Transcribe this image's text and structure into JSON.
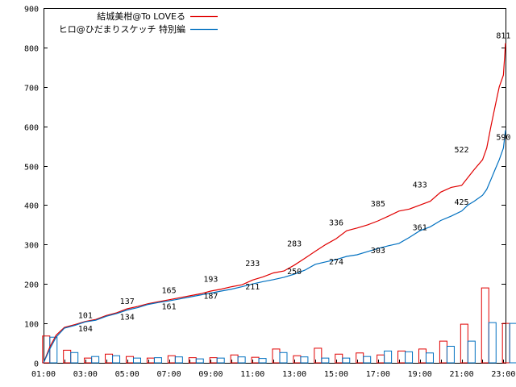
{
  "chart_data": {
    "type": "line",
    "x_ticks": [
      "01:00",
      "03:00",
      "05:00",
      "07:00",
      "09:00",
      "11:00",
      "13:00",
      "15:00",
      "17:00",
      "19:00",
      "21:00",
      "23:00"
    ],
    "ylim": [
      0,
      900
    ],
    "y_ticks": [
      0,
      100,
      200,
      300,
      400,
      500,
      600,
      700,
      800,
      900
    ],
    "series": [
      {
        "name": "結城美柑@To LOVEる",
        "color": "#e00000",
        "x": [
          1,
          1.3,
          1.6,
          2,
          2.5,
          3,
          3.5,
          4,
          4.5,
          5,
          5.5,
          6,
          6.5,
          7,
          7.5,
          8,
          8.5,
          9,
          9.5,
          10,
          10.5,
          11,
          11.5,
          12,
          12.5,
          13,
          13.5,
          14,
          14.5,
          15,
          15.5,
          16,
          16.5,
          17,
          17.5,
          18,
          18.5,
          19,
          19.5,
          20,
          20.5,
          21,
          21.3,
          21.6,
          22,
          22.2,
          22.4,
          22.6,
          22.8,
          23,
          23.1
        ],
        "y": [
          0,
          40,
          70,
          90,
          97,
          105,
          110,
          120,
          127,
          137,
          143,
          150,
          155,
          160,
          165,
          170,
          175,
          182,
          187,
          193,
          198,
          210,
          218,
          228,
          233,
          248,
          265,
          283,
          300,
          315,
          335,
          342,
          350,
          360,
          372,
          385,
          390,
          400,
          410,
          433,
          445,
          450,
          470,
          490,
          515,
          545,
          600,
          650,
          700,
          730,
          811
        ],
        "labels": [
          [
            3,
            101
          ],
          [
            5,
            137
          ],
          [
            7,
            165
          ],
          [
            9,
            193
          ],
          [
            11,
            233
          ],
          [
            13,
            283
          ],
          [
            15,
            336
          ],
          [
            17,
            385
          ],
          [
            19,
            433
          ],
          [
            21,
            522
          ],
          [
            23,
            811
          ]
        ]
      },
      {
        "name": "ヒロ@ひだまりスケッチ 特別編",
        "color": "#0070c0",
        "x": [
          1,
          1.3,
          1.6,
          2,
          2.5,
          3,
          3.5,
          4,
          4.5,
          5,
          5.5,
          6,
          6.5,
          7,
          7.5,
          8,
          8.5,
          9,
          9.5,
          10,
          10.5,
          11,
          11.5,
          12,
          12.5,
          13,
          13.5,
          14,
          14.5,
          15,
          15.5,
          16,
          16.5,
          17,
          17.5,
          18,
          18.5,
          19,
          19.5,
          20,
          20.5,
          21,
          21.3,
          21.6,
          22,
          22.2,
          22.4,
          22.6,
          22.8,
          23,
          23.1
        ],
        "y": [
          0,
          35,
          65,
          88,
          95,
          104,
          108,
          118,
          125,
          134,
          140,
          148,
          153,
          157,
          162,
          167,
          172,
          177,
          182,
          187,
          193,
          200,
          206,
          211,
          217,
          225,
          235,
          250,
          256,
          262,
          270,
          274,
          282,
          290,
          297,
          303,
          318,
          335,
          345,
          361,
          372,
          385,
          400,
          410,
          425,
          440,
          465,
          490,
          515,
          545,
          590
        ],
        "labels": [
          [
            3,
            104
          ],
          [
            5,
            134
          ],
          [
            7,
            161
          ],
          [
            9,
            187
          ],
          [
            11,
            211
          ],
          [
            13,
            250
          ],
          [
            15,
            274
          ],
          [
            17,
            303
          ],
          [
            19,
            361
          ],
          [
            21,
            425
          ],
          [
            23,
            590
          ]
        ]
      }
    ],
    "bars": {
      "x": [
        1,
        2,
        3,
        4,
        5,
        6,
        7,
        8,
        9,
        10,
        11,
        12,
        13,
        14,
        15,
        16,
        17,
        18,
        19,
        20,
        21,
        22,
        23
      ],
      "red": [
        68,
        32,
        12,
        22,
        16,
        12,
        18,
        13,
        13,
        20,
        14,
        35,
        18,
        37,
        22,
        25,
        20,
        30,
        35,
        55,
        98,
        190,
        100
      ],
      "blue": [
        65,
        26,
        16,
        18,
        12,
        13,
        15,
        10,
        12,
        15,
        11,
        26,
        15,
        12,
        12,
        16,
        30,
        28,
        25,
        42,
        55,
        102,
        100
      ]
    }
  }
}
